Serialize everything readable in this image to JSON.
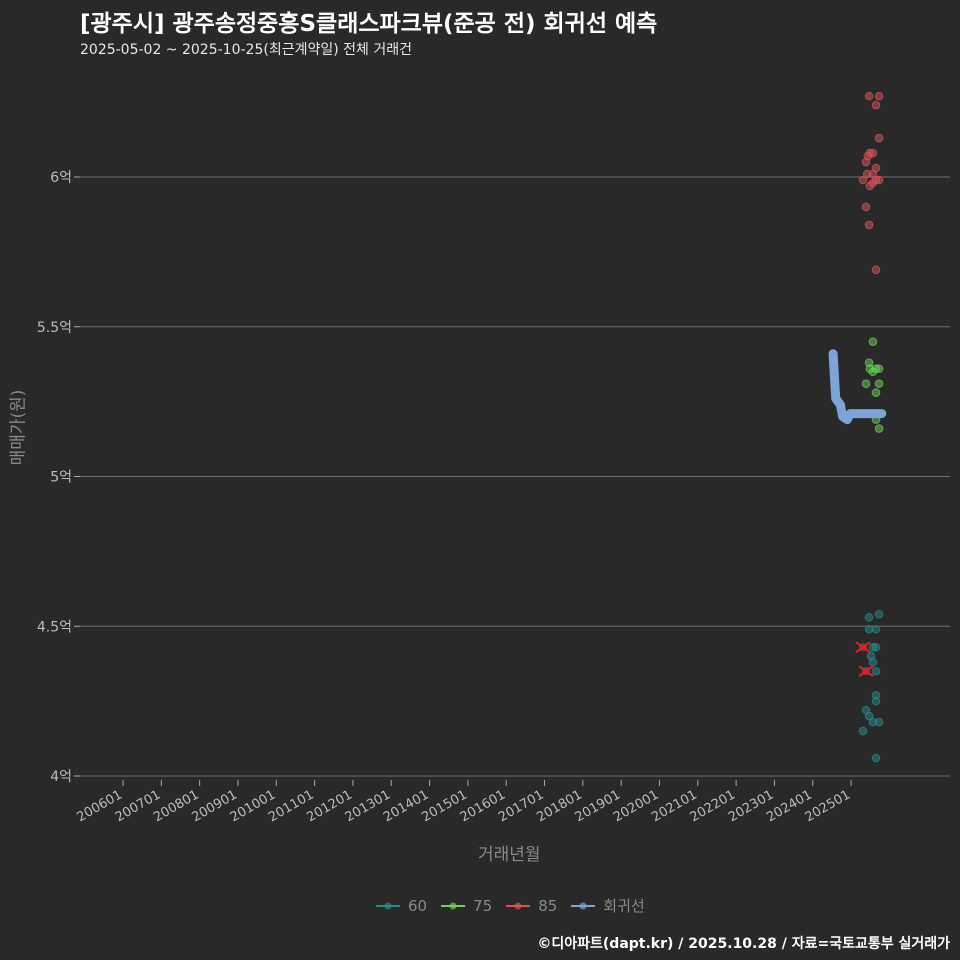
{
  "title": "[광주시] 광주송정중흥S클래스파크뷰(준공 전) 회귀선 예측",
  "subtitle": "2025-05-02 ~ 2025-10-25(최근계약일) 전체 거래건",
  "footer": "©디아파트(dapt.kr) / 2025.10.28 / 자료=국토교통부 실거래가",
  "colors": {
    "s60": "#2a8a86",
    "s75": "#6fcf5a",
    "s85": "#d9545c",
    "reg": "#7ea3d6",
    "cancel": "#e0202a"
  },
  "chart_data": {
    "type": "scatter",
    "xlabel": "거래년월",
    "ylabel": "매매가(원)",
    "ylim": [
      4,
      6.3
    ],
    "xlim": [
      2004.9,
      2027.5
    ],
    "y_ticks": [
      {
        "v": 4,
        "label": "4억"
      },
      {
        "v": 4.5,
        "label": "4.5억"
      },
      {
        "v": 5,
        "label": "5억"
      },
      {
        "v": 5.5,
        "label": "5.5억"
      },
      {
        "v": 6,
        "label": "6억"
      }
    ],
    "x_ticks": [
      "200601",
      "200701",
      "200801",
      "200901",
      "201001",
      "201101",
      "201201",
      "201301",
      "201401",
      "201501",
      "201601",
      "201701",
      "201801",
      "201901",
      "202001",
      "202101",
      "202201",
      "202301",
      "202401",
      "202501"
    ],
    "legend": [
      "60",
      "75",
      "85",
      "회귀선"
    ],
    "series": [
      {
        "name": "60",
        "points": [
          [
            2025.73,
            4.54
          ],
          [
            2025.47,
            4.53
          ],
          [
            2025.47,
            4.49
          ],
          [
            2025.65,
            4.49
          ],
          [
            2025.57,
            4.43
          ],
          [
            2025.65,
            4.43
          ],
          [
            2025.52,
            4.4
          ],
          [
            2025.57,
            4.38
          ],
          [
            2025.65,
            4.35
          ],
          [
            2025.65,
            4.27
          ],
          [
            2025.65,
            4.25
          ],
          [
            2025.39,
            4.22
          ],
          [
            2025.47,
            4.2
          ],
          [
            2025.57,
            4.18
          ],
          [
            2025.73,
            4.18
          ],
          [
            2025.31,
            4.15
          ],
          [
            2025.65,
            4.06
          ]
        ]
      },
      {
        "name": "75",
        "points": [
          [
            2025.57,
            5.45
          ],
          [
            2025.47,
            5.38
          ],
          [
            2025.49,
            5.36
          ],
          [
            2025.65,
            5.36
          ],
          [
            2025.73,
            5.36
          ],
          [
            2025.57,
            5.35
          ],
          [
            2025.39,
            5.31
          ],
          [
            2025.73,
            5.31
          ],
          [
            2025.65,
            5.28
          ],
          [
            2025.65,
            5.19
          ],
          [
            2025.73,
            5.16
          ]
        ]
      },
      {
        "name": "85",
        "points": [
          [
            2025.47,
            6.27
          ],
          [
            2025.73,
            6.27
          ],
          [
            2025.65,
            6.24
          ],
          [
            2025.73,
            6.13
          ],
          [
            2025.49,
            6.08
          ],
          [
            2025.57,
            6.08
          ],
          [
            2025.44,
            6.07
          ],
          [
            2025.39,
            6.05
          ],
          [
            2025.65,
            6.03
          ],
          [
            2025.42,
            6.01
          ],
          [
            2025.57,
            6.01
          ],
          [
            2025.31,
            5.99
          ],
          [
            2025.65,
            5.99
          ],
          [
            2025.73,
            5.99
          ],
          [
            2025.57,
            5.98
          ],
          [
            2025.49,
            5.97
          ],
          [
            2025.39,
            5.9
          ],
          [
            2025.47,
            5.84
          ],
          [
            2025.65,
            5.69
          ]
        ]
      },
      {
        "name": "회귀선",
        "type": "line",
        "points": [
          [
            2024.53,
            5.41
          ],
          [
            2024.6,
            5.26
          ],
          [
            2024.72,
            5.24
          ],
          [
            2024.78,
            5.2
          ],
          [
            2024.9,
            5.19
          ],
          [
            2024.98,
            5.21
          ],
          [
            2025.8,
            5.21
          ]
        ]
      }
    ],
    "cancelled": [
      [
        2025.31,
        4.43
      ],
      [
        2025.39,
        4.35
      ]
    ]
  }
}
